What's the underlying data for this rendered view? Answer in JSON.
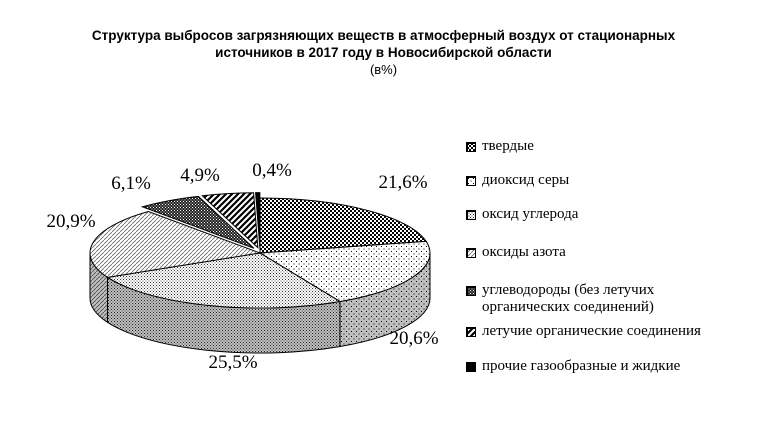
{
  "title_line1": "Структура выбросов загрязняющих веществ в атмосферный воздух от стационарных",
  "title_line2": "источников в 2017 году в Новосибирской области",
  "subtitle": "(в%)",
  "chart_data": {
    "type": "pie",
    "title": "Структура выбросов загрязняющих веществ в атмосферный воздух от стационарных источников в 2017 году в Новосибирской области",
    "subtitle": "(в%)",
    "three_d": true,
    "legend_position": "right",
    "slices": [
      {
        "name": "твердые",
        "value": 21.6,
        "label": "21,6%",
        "pattern": "checker"
      },
      {
        "name": "диоксид серы",
        "value": 20.6,
        "label": "20,6%",
        "pattern": "dots-sparse"
      },
      {
        "name": "оксид углерода",
        "value": 25.5,
        "label": "25,5%",
        "pattern": "dots-dense"
      },
      {
        "name": "оксиды азота",
        "value": 20.9,
        "label": "20,9%",
        "pattern": "diagonal-thin"
      },
      {
        "name": "углеводороды (без летучих органических соединений)",
        "value": 6.1,
        "label": "6,1%",
        "pattern": "checker-dense"
      },
      {
        "name": "летучие органические соединения",
        "value": 4.9,
        "label": "4,9%",
        "pattern": "diagonal-thick"
      },
      {
        "name": "прочие газообразные и жидкие",
        "value": 0.4,
        "label": "0,4%",
        "pattern": "solid-black"
      }
    ]
  }
}
